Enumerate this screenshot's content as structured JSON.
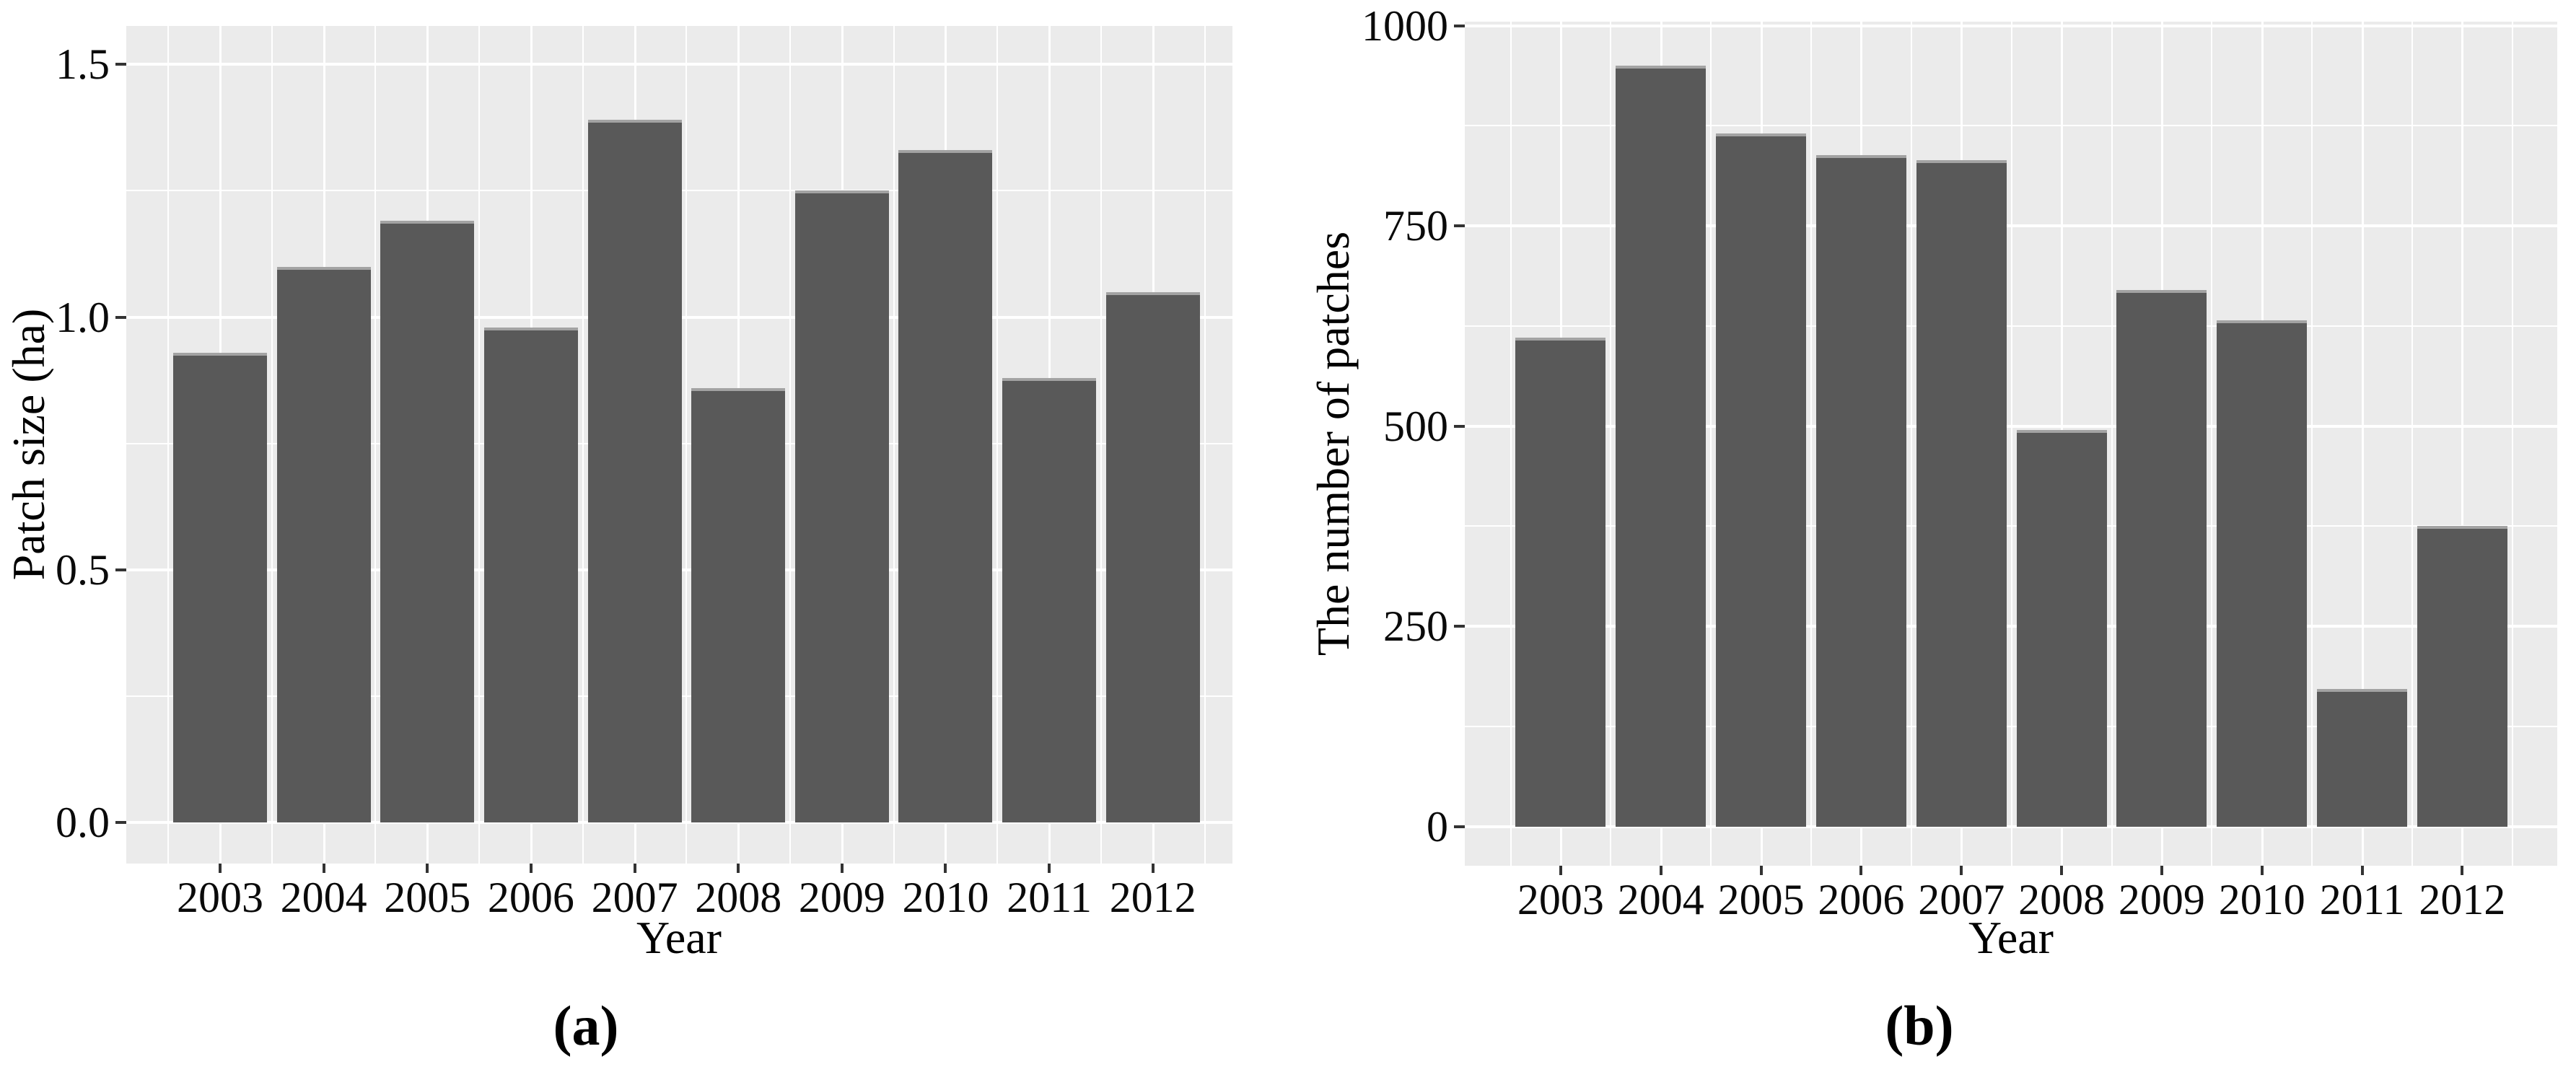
{
  "figure": {
    "captions": [
      "(a)",
      "(b)"
    ]
  },
  "chart_data": [
    {
      "type": "bar",
      "subfigure": "(a)",
      "title": "",
      "xlabel": "Year",
      "ylabel": "Patch size (ha)",
      "categories": [
        "2003",
        "2004",
        "2005",
        "2006",
        "2007",
        "2008",
        "2009",
        "2010",
        "2011",
        "2012"
      ],
      "values": [
        0.93,
        1.1,
        1.19,
        0.98,
        1.39,
        0.86,
        1.25,
        1.33,
        0.88,
        1.05
      ],
      "y_ticks": [
        0.0,
        0.5,
        1.0,
        1.5
      ],
      "y_tick_labels": [
        "0.0",
        "0.5",
        "1.0",
        "1.5"
      ],
      "y_minor_ticks": [
        0.25,
        0.75,
        1.25
      ],
      "ylim": [
        -0.081,
        1.576
      ],
      "grid": "white major and minor gridlines on gray panel",
      "legend": "none",
      "bar_color": "#595959",
      "panel_bg": "#ebebeb",
      "grid_color": "#ffffff"
    },
    {
      "type": "bar",
      "subfigure": "(b)",
      "title": "",
      "xlabel": "Year",
      "ylabel": "The number of patches",
      "categories": [
        "2003",
        "2004",
        "2005",
        "2006",
        "2007",
        "2008",
        "2009",
        "2010",
        "2011",
        "2012"
      ],
      "values": [
        610,
        950,
        865,
        838,
        832,
        495,
        670,
        632,
        172,
        375
      ],
      "y_ticks": [
        0,
        250,
        500,
        750,
        1000
      ],
      "y_tick_labels": [
        "0",
        "250",
        "500",
        "750",
        "1000"
      ],
      "y_minor_ticks": [
        125,
        375,
        625,
        875
      ],
      "ylim": [
        -49,
        1005
      ],
      "grid": "white major and minor gridlines on gray panel",
      "legend": "none",
      "bar_color": "#595959",
      "panel_bg": "#ebebeb",
      "grid_color": "#ffffff"
    }
  ]
}
